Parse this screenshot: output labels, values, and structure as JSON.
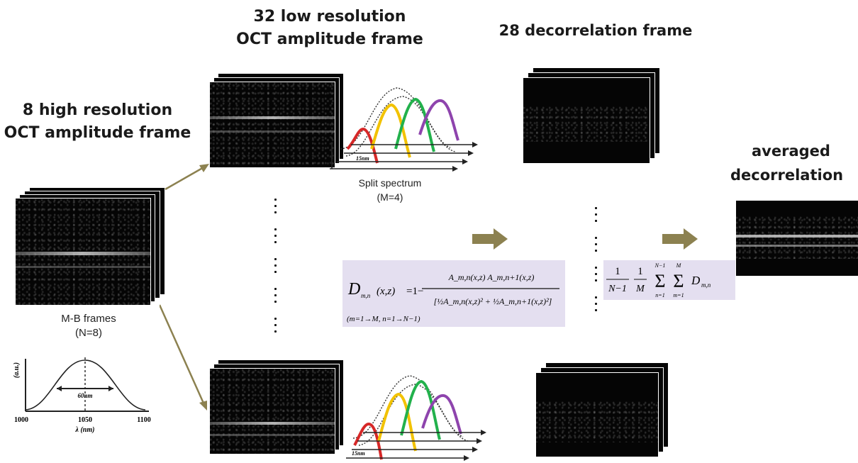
{
  "titles": {
    "high_res_line1": "8 high resolution",
    "high_res_line2": "OCT amplitude frame",
    "low_res_line1": "32 low resolution",
    "low_res_line2": "OCT amplitude frame",
    "decorrelation": "28 decorrelation frame",
    "averaged_line1": "averaged",
    "averaged_line2": "decorrelation"
  },
  "labels": {
    "mb_frames_line1": "M-B frames",
    "mb_frames_line2": "(N=8)",
    "split_spectrum_line1": "Split spectrum",
    "split_spectrum_line2": "(M=4)"
  },
  "spectrum_plot": {
    "x_ticks": [
      "1000",
      "1050",
      "1100"
    ],
    "x_label": "λ (nm)",
    "y_label": "(a.u.)",
    "bandwidth_label": "60nm"
  },
  "split_band_label": "15nm",
  "formula_1": {
    "lhs": "D",
    "lhs_sub": "m,n",
    "lhs_args": "(x,z)",
    "one_minus": "=1−",
    "numerator": "A_m,n(x,z) A_m,n+1(x,z)",
    "denominator": "[½A_m,n(x,z)² + ½A_m,n+1(x,z)²]",
    "range": "(m=1→M, n=1→N−1)"
  },
  "formula_2": {
    "frac1_num": "1",
    "frac1_den": "N−1",
    "frac2_num": "1",
    "frac2_den": "M",
    "sum1_upper": "N−1",
    "sum1_lower": "n=1",
    "sum2_upper": "M",
    "sum2_lower": "m=1",
    "term": "D",
    "term_sub": "m,n"
  },
  "colors": {
    "arrow": "#8c8150",
    "formula_bg": "#e4dff0",
    "band_red": "#d62828",
    "band_yellow": "#f2c200",
    "band_green": "#22b14c",
    "band_purple": "#8e44ad"
  }
}
